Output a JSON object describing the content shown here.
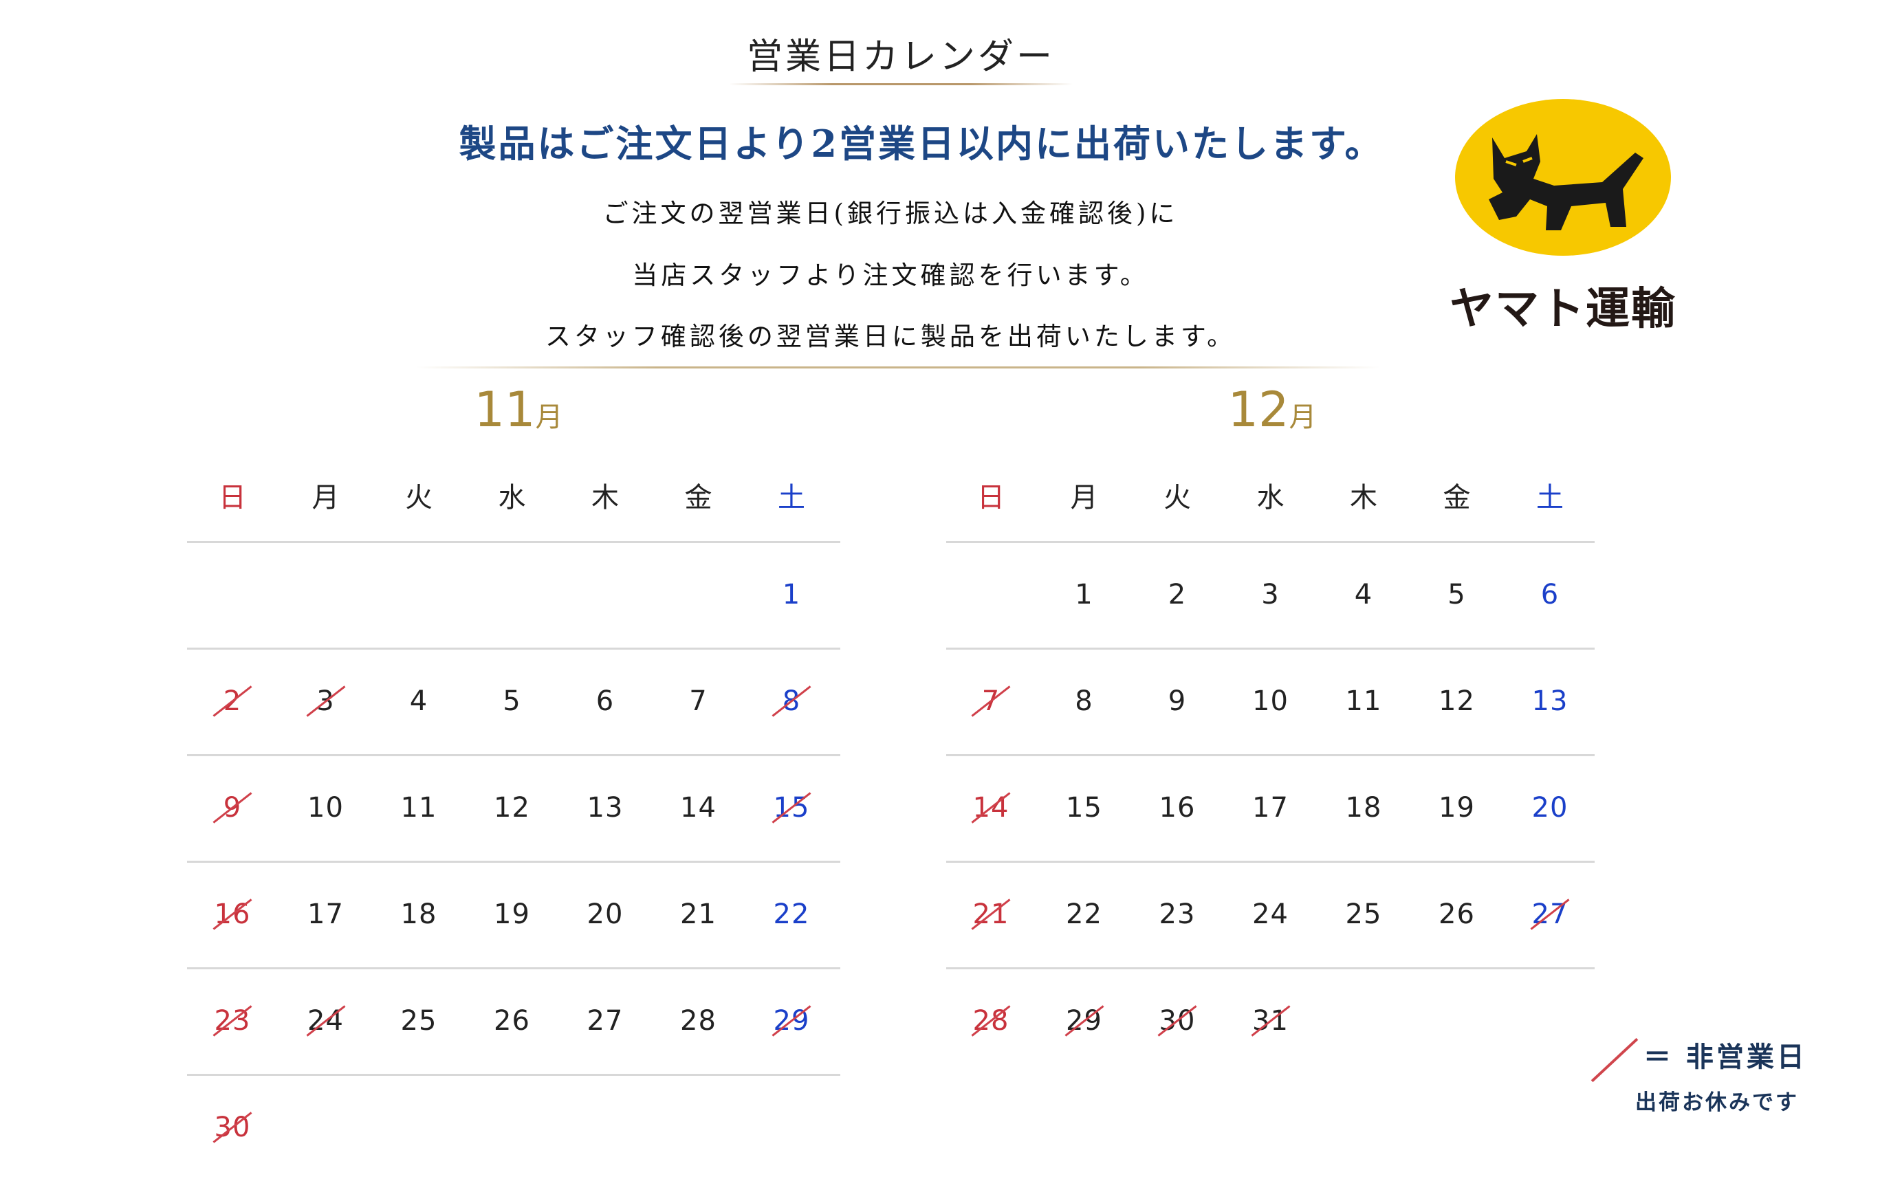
{
  "header": {
    "title": "営業日カレンダー",
    "headline": "製品はご注文日より2営業日以内に出荷いたします。",
    "lines": [
      "ご注文の翌営業日(銀行振込は入金確認後)に",
      "当店スタッフより注文確認を行います。",
      "スタッフ確認後の翌営業日に製品を出荷いたします。"
    ]
  },
  "logo": {
    "text": "ヤマト運輸",
    "icon": "black-cat-icon",
    "color": "#f7c800"
  },
  "colors": {
    "sunday": "#c8323c",
    "saturday": "#1a3fc9",
    "weekday": "#222222",
    "strike": "#d0404a",
    "month": "#a8893a",
    "headline": "#1d4785"
  },
  "weekdays": [
    "日",
    "月",
    "火",
    "水",
    "木",
    "金",
    "土"
  ],
  "calendars": [
    {
      "month_num": "11",
      "month_unit": "月",
      "weeks": [
        [
          null,
          null,
          null,
          null,
          null,
          null,
          {
            "d": "1"
          }
        ],
        [
          {
            "d": "2",
            "off": true
          },
          {
            "d": "3",
            "off": true
          },
          {
            "d": "4"
          },
          {
            "d": "5"
          },
          {
            "d": "6"
          },
          {
            "d": "7"
          },
          {
            "d": "8",
            "off": true
          }
        ],
        [
          {
            "d": "9",
            "off": true
          },
          {
            "d": "10"
          },
          {
            "d": "11"
          },
          {
            "d": "12"
          },
          {
            "d": "13"
          },
          {
            "d": "14"
          },
          {
            "d": "15",
            "off": true
          }
        ],
        [
          {
            "d": "16",
            "off": true
          },
          {
            "d": "17"
          },
          {
            "d": "18"
          },
          {
            "d": "19"
          },
          {
            "d": "20"
          },
          {
            "d": "21"
          },
          {
            "d": "22"
          }
        ],
        [
          {
            "d": "23",
            "off": true
          },
          {
            "d": "24",
            "off": true
          },
          {
            "d": "25"
          },
          {
            "d": "26"
          },
          {
            "d": "27"
          },
          {
            "d": "28"
          },
          {
            "d": "29",
            "off": true
          }
        ],
        [
          {
            "d": "30",
            "off": true
          },
          null,
          null,
          null,
          null,
          null,
          null
        ]
      ]
    },
    {
      "month_num": "12",
      "month_unit": "月",
      "weeks": [
        [
          null,
          {
            "d": "1"
          },
          {
            "d": "2"
          },
          {
            "d": "3"
          },
          {
            "d": "4"
          },
          {
            "d": "5"
          },
          {
            "d": "6"
          }
        ],
        [
          {
            "d": "7",
            "off": true
          },
          {
            "d": "8"
          },
          {
            "d": "9"
          },
          {
            "d": "10"
          },
          {
            "d": "11"
          },
          {
            "d": "12"
          },
          {
            "d": "13"
          }
        ],
        [
          {
            "d": "14",
            "off": true
          },
          {
            "d": "15"
          },
          {
            "d": "16"
          },
          {
            "d": "17"
          },
          {
            "d": "18"
          },
          {
            "d": "19"
          },
          {
            "d": "20"
          }
        ],
        [
          {
            "d": "21",
            "off": true
          },
          {
            "d": "22"
          },
          {
            "d": "23"
          },
          {
            "d": "24"
          },
          {
            "d": "25"
          },
          {
            "d": "26"
          },
          {
            "d": "27",
            "off": true
          }
        ],
        [
          {
            "d": "28",
            "off": true
          },
          {
            "d": "29",
            "off": true
          },
          {
            "d": "30",
            "off": true
          },
          {
            "d": "31",
            "off": true
          },
          null,
          null,
          null
        ]
      ]
    }
  ],
  "legend": {
    "line1": "＝ 非営業日",
    "line2": "出荷お休みです"
  }
}
